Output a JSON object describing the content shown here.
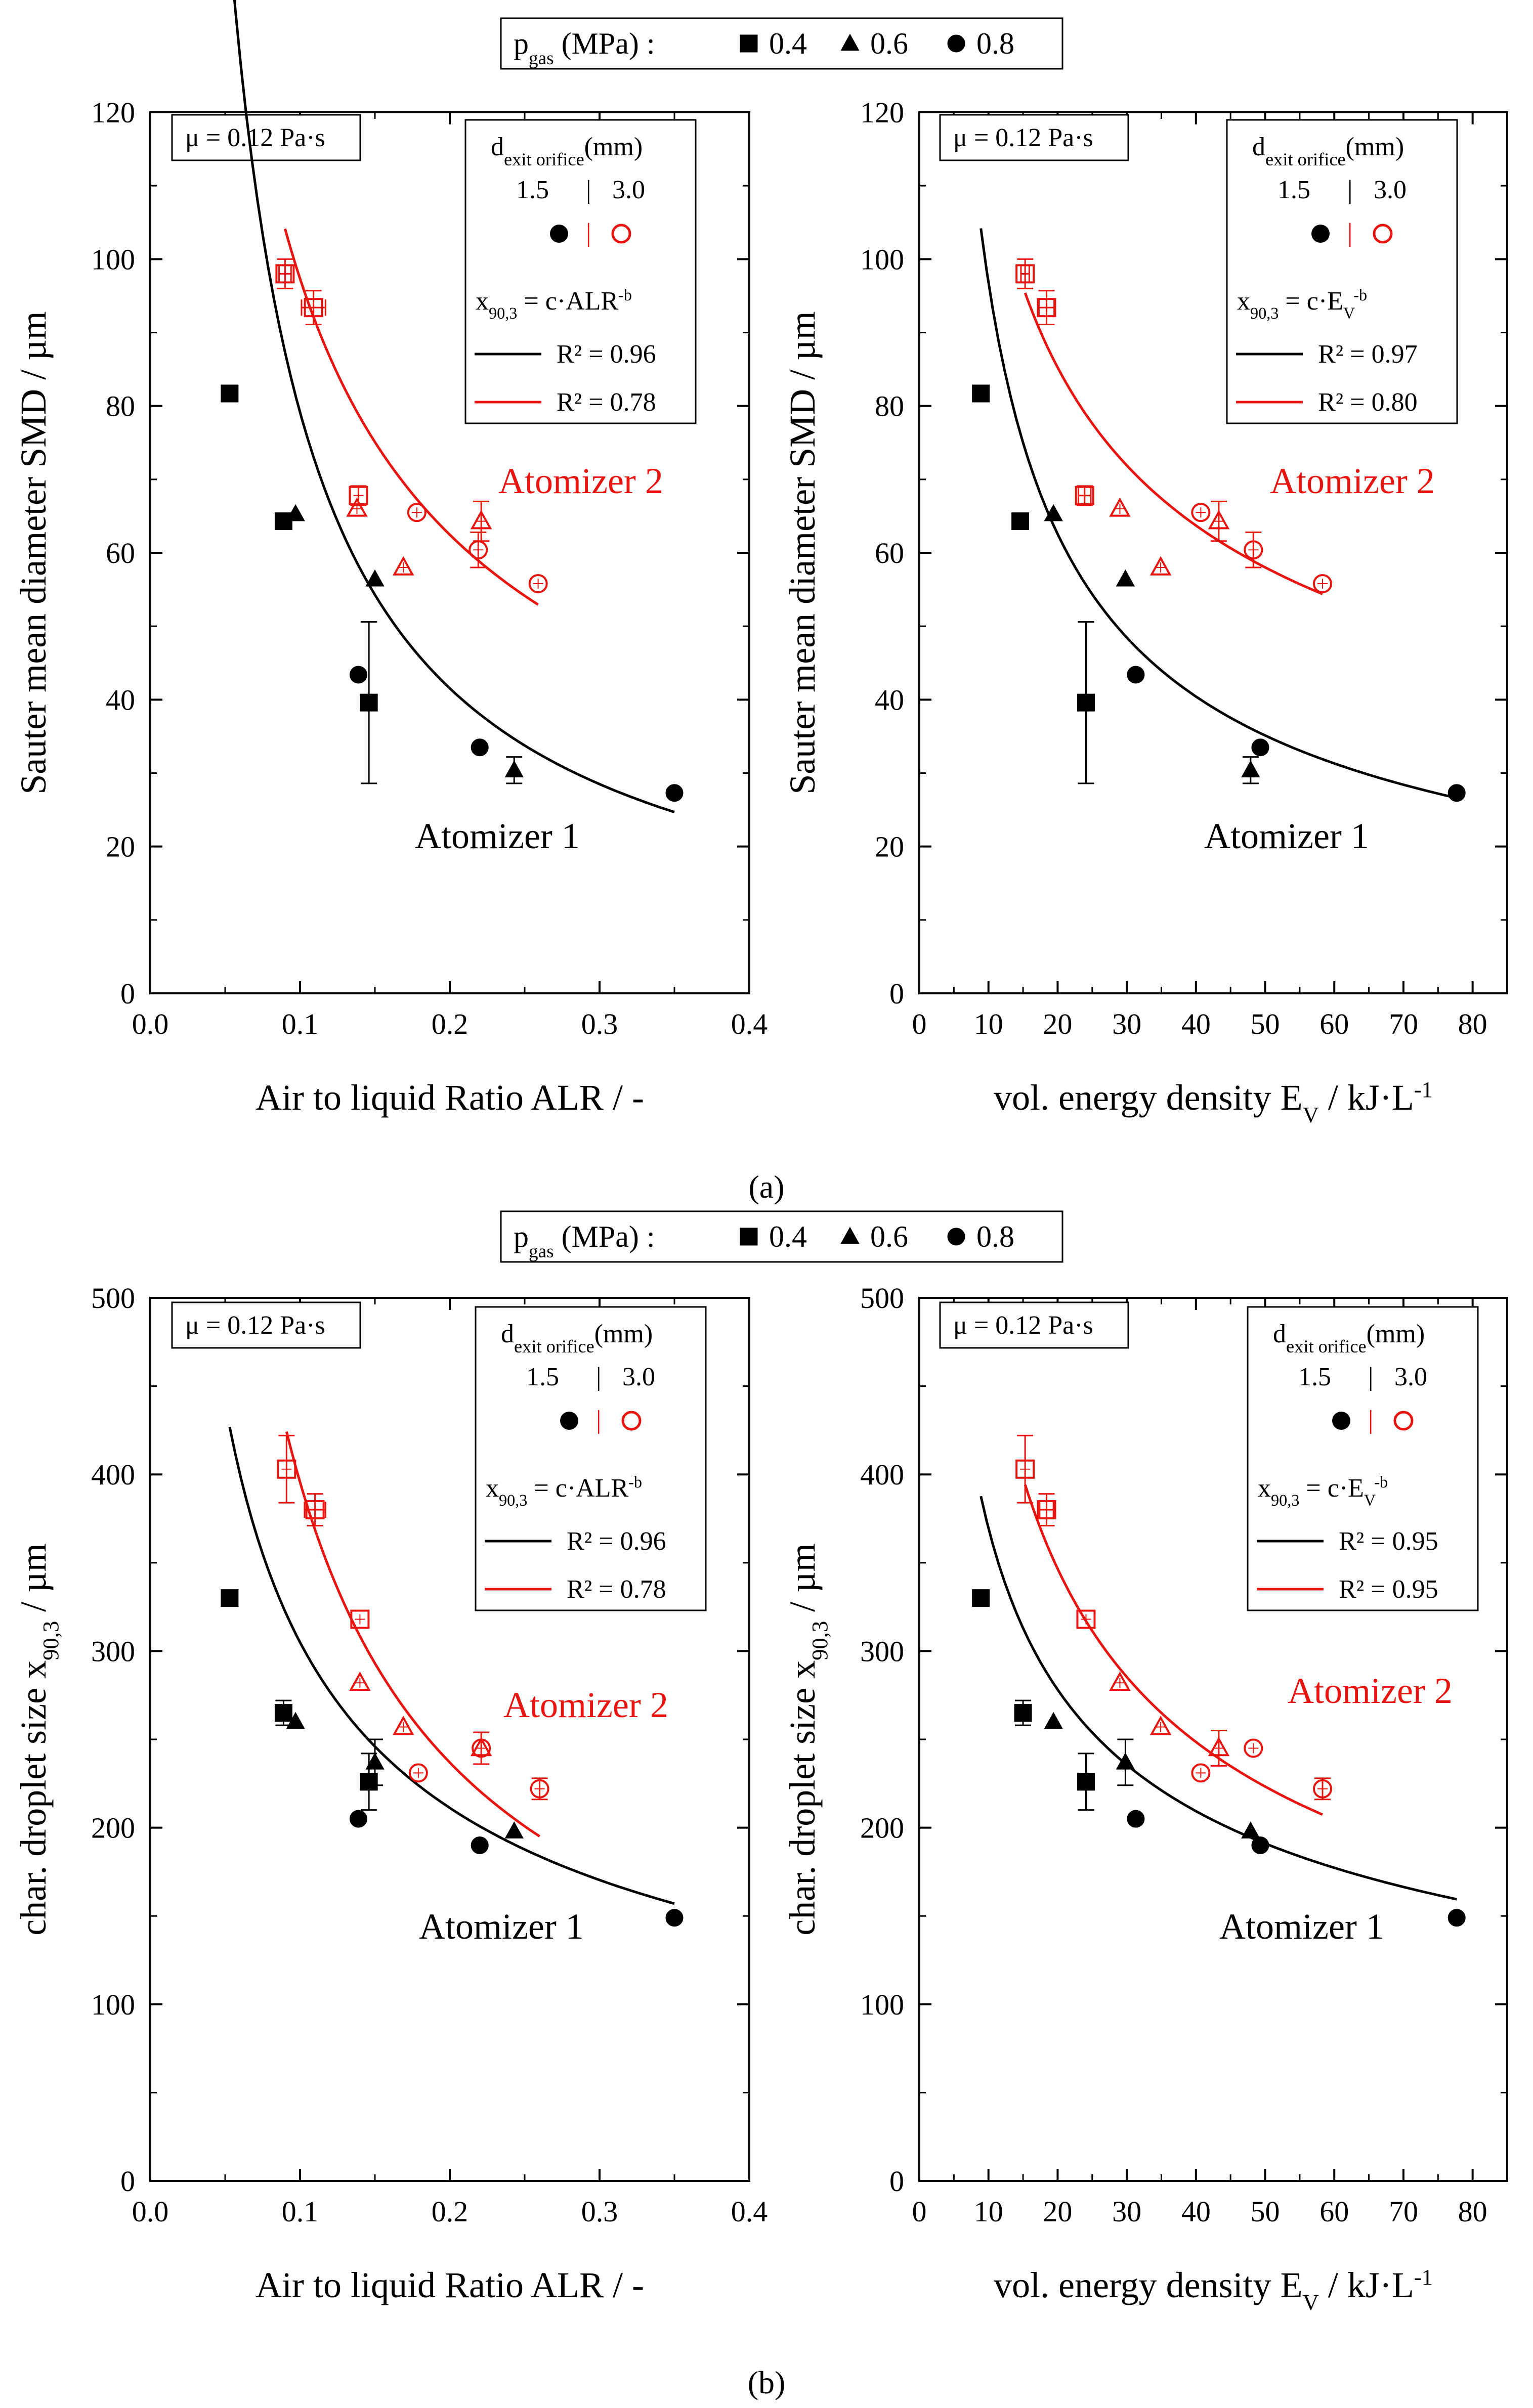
{
  "figure": {
    "legend_top": {
      "label": "p",
      "sub": "gas",
      "unit": " (MPa) :",
      "items": [
        "0.4",
        "0.6",
        "0.8"
      ]
    },
    "legend_bottom": {
      "label": "p",
      "sub": "gas",
      "unit": " (MPa) :",
      "items": [
        "0.4",
        "0.6",
        "0.8"
      ]
    },
    "caption_a": "(a)",
    "caption_b": "(b)",
    "viscosity_label": "μ = 0.12 Pa·s",
    "orifice_head": {
      "main": "d",
      "sub": "exit orifice",
      "unit": "(mm)"
    },
    "orifice_values": {
      "small": "1.5",
      "sep": "|",
      "large": "3.0"
    },
    "atomizer1_label": "Atomizer 1",
    "atomizer2_label": "Atomizer 2",
    "colors": {
      "atomizer1": "#000000",
      "atomizer2": "#e8140f"
    }
  },
  "chart_data": [
    {
      "id": "a-left",
      "type": "scatter",
      "xlabel": "Air to liquid Ratio ALR / -",
      "ylabel": "Sauter mean diameter SMD / µm",
      "xlim": [
        0,
        0.4
      ],
      "ylim": [
        0,
        120
      ],
      "xticks": [
        0,
        0.1,
        0.2,
        0.3,
        0.4
      ],
      "xticklabels": [
        "0.0",
        "0.1",
        "0.2",
        "0.3",
        "0.4"
      ],
      "yticks": [
        0,
        20,
        40,
        60,
        80,
        100,
        120
      ],
      "yticklabels": [
        "0",
        "20",
        "40",
        "60",
        "80",
        "100",
        "120"
      ],
      "fit_formula": "x90,3 = c·ALR-b",
      "fit_formula_parts": {
        "pre": "x",
        "sub": "90,3",
        "mid": " = c·ALR",
        "sup": "-b"
      },
      "r2": [
        "0.96",
        "0.78"
      ],
      "r2_labels": [
        "R² = 0.96",
        "R² = 0.78"
      ],
      "series": [
        {
          "name": "Atomizer 1",
          "orifice": "1.5",
          "points": [
            {
              "p": 0.4,
              "x": 0.053,
              "y": 81.7
            },
            {
              "p": 0.4,
              "x": 0.089,
              "y": 64.3
            },
            {
              "p": 0.6,
              "x": 0.097,
              "y": 65.3
            },
            {
              "p": 0.8,
              "x": 0.139,
              "y": 43.4
            },
            {
              "p": 0.4,
              "x": 0.146,
              "y": 39.6,
              "err": 11
            },
            {
              "p": 0.6,
              "x": 0.15,
              "y": 56.4
            },
            {
              "p": 0.8,
              "x": 0.22,
              "y": 33.5
            },
            {
              "p": 0.6,
              "x": 0.243,
              "y": 30.4,
              "err": 1.8
            },
            {
              "p": 0.8,
              "x": 0.35,
              "y": 27.3
            }
          ]
        },
        {
          "name": "Atomizer 2",
          "orifice": "3.0",
          "points": [
            {
              "p": 0.4,
              "x": 0.09,
              "y": 98.0,
              "err": 2,
              "xerr": 0.004
            },
            {
              "p": 0.4,
              "x": 0.109,
              "y": 93.4,
              "err": 2.3,
              "xerr": 0.008
            },
            {
              "p": 0.4,
              "x": 0.139,
              "y": 67.8,
              "err": 1.3
            },
            {
              "p": 0.6,
              "x": 0.138,
              "y": 66.0
            },
            {
              "p": 0.6,
              "x": 0.169,
              "y": 58.0
            },
            {
              "p": 0.8,
              "x": 0.178,
              "y": 65.5
            },
            {
              "p": 0.6,
              "x": 0.221,
              "y": 64.3,
              "err": 2.7
            },
            {
              "p": 0.8,
              "x": 0.219,
              "y": 60.4,
              "err": 2.4
            },
            {
              "p": 0.8,
              "x": 0.259,
              "y": 55.8
            }
          ]
        }
      ],
      "fits": [
        {
          "name": "Atomizer 1",
          "c": 9.3,
          "b": 0.93,
          "x": [
            0.053,
            0.35
          ]
        },
        {
          "name": "Atomizer 2",
          "c": 22.3,
          "b": 0.64,
          "x": [
            0.09,
            0.259
          ]
        }
      ]
    },
    {
      "id": "a-right",
      "type": "scatter",
      "xlabel": "vol. energy density EV / kJ·L-1",
      "xlabel_parts": {
        "pre": "vol. energy density E",
        "sub": "V",
        "mid": " / kJ·L",
        "sup": "-1"
      },
      "ylabel": "Sauter mean diameter SMD / µm",
      "xlim": [
        0,
        85
      ],
      "ylim": [
        0,
        120
      ],
      "xticks": [
        0,
        10,
        20,
        30,
        40,
        50,
        60,
        70,
        80
      ],
      "xticklabels": [
        "0",
        "10",
        "20",
        "30",
        "40",
        "50",
        "60",
        "70",
        "80"
      ],
      "yticks": [
        0,
        20,
        40,
        60,
        80,
        100,
        120
      ],
      "yticklabels": [
        "0",
        "20",
        "40",
        "60",
        "80",
        "100",
        "120"
      ],
      "fit_formula": "x90,3 = c·EV-b",
      "fit_formula_parts": {
        "pre": "x",
        "sub": "90,3",
        "mid": " = c·E",
        "sub2": "V",
        "sup": "-b"
      },
      "r2": [
        "0.97",
        "0.80"
      ],
      "r2_labels": [
        "R² = 0.97",
        "R² = 0.80"
      ],
      "series": [
        {
          "name": "Atomizer 1",
          "orifice": "1.5",
          "points": [
            {
              "p": 0.4,
              "x": 8.9,
              "y": 81.7
            },
            {
              "p": 0.4,
              "x": 14.6,
              "y": 64.3
            },
            {
              "p": 0.6,
              "x": 19.4,
              "y": 65.3
            },
            {
              "p": 0.4,
              "x": 24.1,
              "y": 39.6,
              "err": 11
            },
            {
              "p": 0.6,
              "x": 29.8,
              "y": 56.4
            },
            {
              "p": 0.8,
              "x": 31.3,
              "y": 43.4
            },
            {
              "p": 0.6,
              "x": 47.9,
              "y": 30.4,
              "err": 1.8
            },
            {
              "p": 0.8,
              "x": 49.3,
              "y": 33.5
            },
            {
              "p": 0.8,
              "x": 77.7,
              "y": 27.3
            }
          ]
        },
        {
          "name": "Atomizer 2",
          "orifice": "3.0",
          "points": [
            {
              "p": 0.4,
              "x": 15.3,
              "y": 98.0,
              "err": 2,
              "xerr": 0.6
            },
            {
              "p": 0.4,
              "x": 18.4,
              "y": 93.4,
              "err": 2.3,
              "xerr": 1.1
            },
            {
              "p": 0.4,
              "x": 23.9,
              "y": 67.8,
              "err": 1.3,
              "xerr": 0.9
            },
            {
              "p": 0.6,
              "x": 29.0,
              "y": 66.0
            },
            {
              "p": 0.6,
              "x": 34.9,
              "y": 58.0
            },
            {
              "p": 0.8,
              "x": 40.7,
              "y": 65.5
            },
            {
              "p": 0.6,
              "x": 43.3,
              "y": 64.3,
              "err": 2.7
            },
            {
              "p": 0.8,
              "x": 48.3,
              "y": 60.4,
              "err": 2.4
            },
            {
              "p": 0.8,
              "x": 58.3,
              "y": 55.8
            }
          ]
        }
      ],
      "fits": [
        {
          "name": "Atomizer 1",
          "c": 413,
          "b": 0.63,
          "x": [
            8.9,
            77.7
          ]
        },
        {
          "name": "Atomizer 2",
          "c": 300,
          "b": 0.42,
          "x": [
            15.3,
            58.3
          ]
        }
      ]
    },
    {
      "id": "b-left",
      "type": "scatter",
      "xlabel": "Air to liquid Ratio ALR / -",
      "ylabel": "char. droplet size x90,3 / µm",
      "ylabel_parts": {
        "pre": "char. droplet size x",
        "sub": "90,3",
        "post": " / µm"
      },
      "xlim": [
        0,
        0.4
      ],
      "ylim": [
        0,
        500
      ],
      "xticks": [
        0,
        0.1,
        0.2,
        0.3,
        0.4
      ],
      "xticklabels": [
        "0.0",
        "0.1",
        "0.2",
        "0.3",
        "0.4"
      ],
      "yticks": [
        0,
        100,
        200,
        300,
        400,
        500
      ],
      "yticklabels": [
        "0",
        "100",
        "200",
        "300",
        "400",
        "500"
      ],
      "fit_formula": "x90,3 = c·ALR-b",
      "fit_formula_parts": {
        "pre": "x",
        "sub": "90,3",
        "mid": " = c·ALR",
        "sup": "-b"
      },
      "r2": [
        "0.96",
        "0.78"
      ],
      "r2_labels": [
        "R² = 0.96",
        "R² = 0.78"
      ],
      "series": [
        {
          "name": "Atomizer 1",
          "orifice": "1.5",
          "points": [
            {
              "p": 0.4,
              "x": 0.053,
              "y": 330
            },
            {
              "p": 0.4,
              "x": 0.089,
              "y": 265,
              "err": 7
            },
            {
              "p": 0.6,
              "x": 0.097,
              "y": 260
            },
            {
              "p": 0.8,
              "x": 0.139,
              "y": 205
            },
            {
              "p": 0.4,
              "x": 0.146,
              "y": 226,
              "err": 16
            },
            {
              "p": 0.6,
              "x": 0.15,
              "y": 237,
              "err": 13
            },
            {
              "p": 0.8,
              "x": 0.22,
              "y": 190
            },
            {
              "p": 0.6,
              "x": 0.243,
              "y": 198
            },
            {
              "p": 0.8,
              "x": 0.35,
              "y": 149
            }
          ]
        },
        {
          "name": "Atomizer 2",
          "orifice": "3.0",
          "points": [
            {
              "p": 0.4,
              "x": 0.091,
              "y": 403,
              "err": 19
            },
            {
              "p": 0.4,
              "x": 0.11,
              "y": 380,
              "err": 9,
              "xerr": 0.007
            },
            {
              "p": 0.4,
              "x": 0.14,
              "y": 318
            },
            {
              "p": 0.6,
              "x": 0.14,
              "y": 282
            },
            {
              "p": 0.6,
              "x": 0.169,
              "y": 257
            },
            {
              "p": 0.8,
              "x": 0.179,
              "y": 231
            },
            {
              "p": 0.6,
              "x": 0.221,
              "y": 245,
              "err": 9
            },
            {
              "p": 0.8,
              "x": 0.221,
              "y": 245
            },
            {
              "p": 0.8,
              "x": 0.26,
              "y": 222,
              "err": 6
            }
          ]
        }
      ],
      "fits": [
        {
          "name": "Atomizer 1",
          "c": 90,
          "b": 0.53,
          "x": [
            0.053,
            0.35
          ]
        },
        {
          "name": "Atomizer 2",
          "c": 72,
          "b": 0.74,
          "x": [
            0.091,
            0.26
          ]
        }
      ]
    },
    {
      "id": "b-right",
      "type": "scatter",
      "xlabel": "vol. energy density EV / kJ·L-1",
      "xlabel_parts": {
        "pre": "vol. energy density E",
        "sub": "V",
        "mid": " / kJ·L",
        "sup": "-1"
      },
      "ylabel": "char. droplet size x90,3 / µm",
      "ylabel_parts": {
        "pre": "char. droplet size x",
        "sub": "90,3",
        "post": " / µm"
      },
      "xlim": [
        0,
        85
      ],
      "ylim": [
        0,
        500
      ],
      "xticks": [
        0,
        10,
        20,
        30,
        40,
        50,
        60,
        70,
        80
      ],
      "xticklabels": [
        "0",
        "10",
        "20",
        "30",
        "40",
        "50",
        "60",
        "70",
        "80"
      ],
      "yticks": [
        0,
        100,
        200,
        300,
        400,
        500
      ],
      "yticklabels": [
        "0",
        "100",
        "200",
        "300",
        "400",
        "500"
      ],
      "fit_formula": "x90,3 = c·EV-b",
      "fit_formula_parts": {
        "pre": "x",
        "sub": "90,3",
        "mid": " = c·E",
        "sub2": "V",
        "sup": "-b"
      },
      "r2": [
        "0.95",
        "0.95"
      ],
      "r2_labels": [
        "R² = 0.95",
        "R² = 0.95"
      ],
      "series": [
        {
          "name": "Atomizer 1",
          "orifice": "1.5",
          "points": [
            {
              "p": 0.4,
              "x": 8.9,
              "y": 330
            },
            {
              "p": 0.4,
              "x": 15.0,
              "y": 265,
              "err": 7
            },
            {
              "p": 0.6,
              "x": 19.4,
              "y": 260
            },
            {
              "p": 0.4,
              "x": 24.1,
              "y": 226,
              "err": 16
            },
            {
              "p": 0.6,
              "x": 29.8,
              "y": 237,
              "err": 13
            },
            {
              "p": 0.8,
              "x": 31.3,
              "y": 205
            },
            {
              "p": 0.6,
              "x": 47.9,
              "y": 198
            },
            {
              "p": 0.8,
              "x": 49.3,
              "y": 190
            },
            {
              "p": 0.8,
              "x": 77.7,
              "y": 149
            }
          ]
        },
        {
          "name": "Atomizer 2",
          "orifice": "3.0",
          "points": [
            {
              "p": 0.4,
              "x": 15.3,
              "y": 403,
              "err": 19
            },
            {
              "p": 0.4,
              "x": 18.4,
              "y": 380,
              "err": 9,
              "xerr": 1
            },
            {
              "p": 0.4,
              "x": 24.1,
              "y": 318
            },
            {
              "p": 0.6,
              "x": 29.0,
              "y": 282
            },
            {
              "p": 0.6,
              "x": 34.9,
              "y": 257
            },
            {
              "p": 0.8,
              "x": 40.7,
              "y": 231
            },
            {
              "p": 0.6,
              "x": 43.3,
              "y": 245,
              "err": 10
            },
            {
              "p": 0.8,
              "x": 48.3,
              "y": 245
            },
            {
              "p": 0.8,
              "x": 58.3,
              "y": 222,
              "err": 6
            }
          ]
        }
      ],
      "fits": [
        {
          "name": "Atomizer 1",
          "c": 950,
          "b": 0.41,
          "x": [
            8.9,
            77.7
          ]
        },
        {
          "name": "Atomizer 2",
          "c": 1460,
          "b": 0.48,
          "x": [
            15.3,
            58.3
          ]
        }
      ]
    }
  ]
}
